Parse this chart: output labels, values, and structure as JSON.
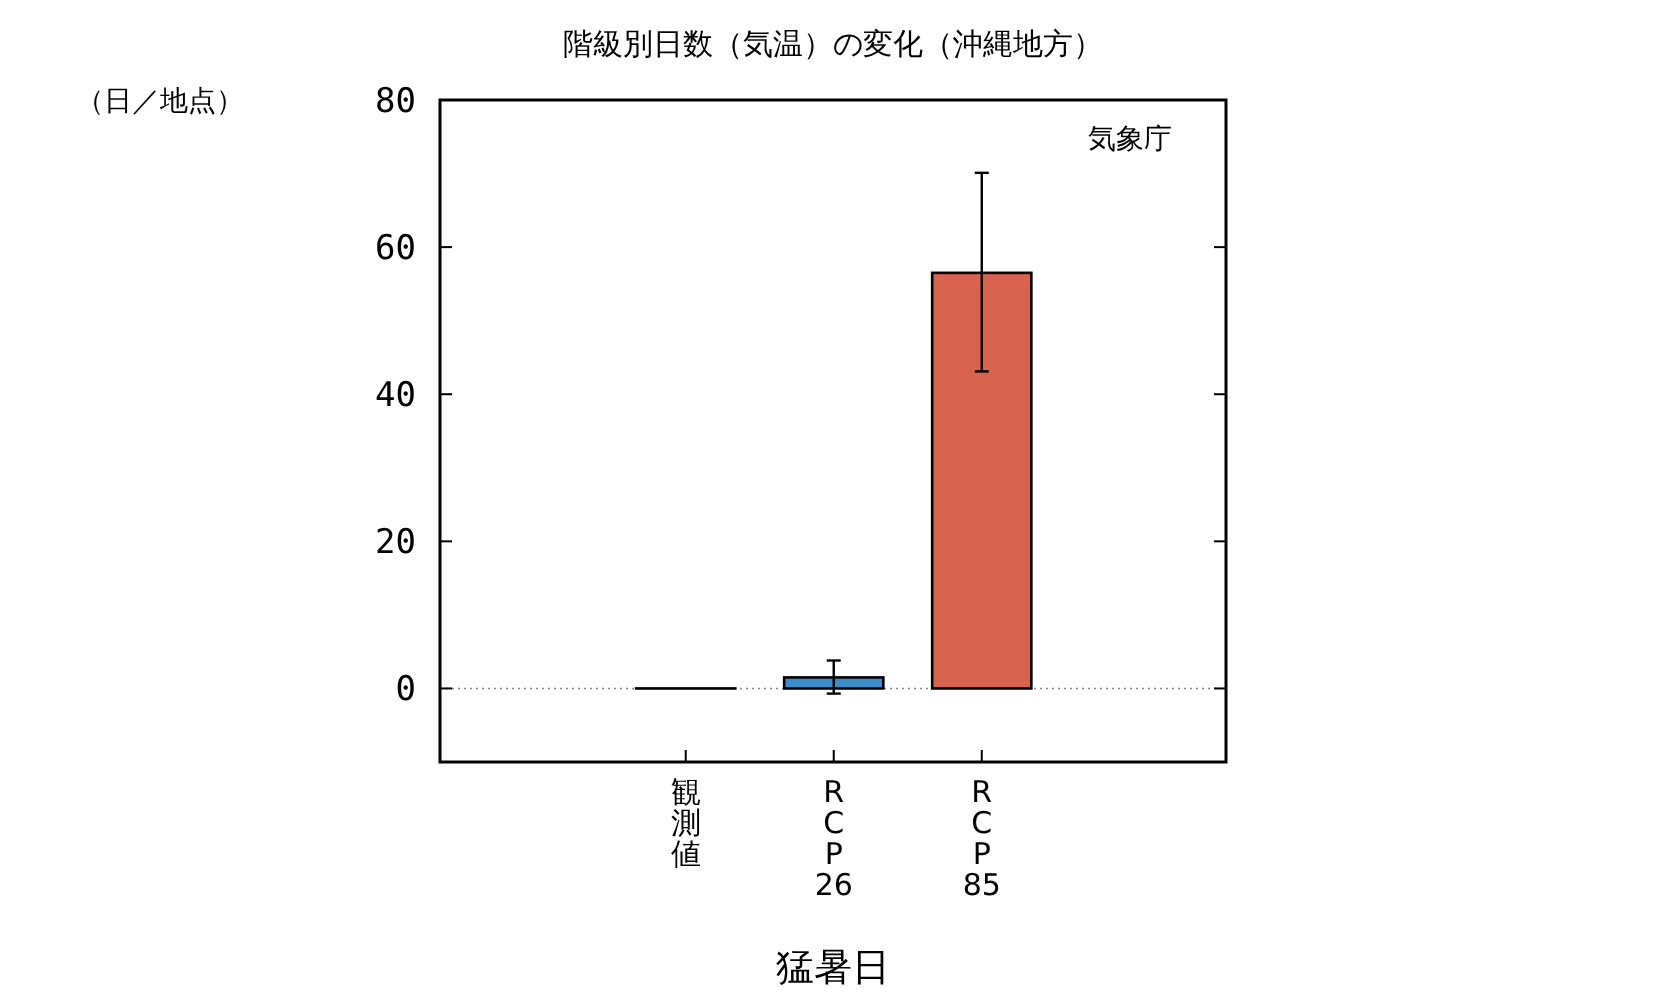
{
  "chart_data": {
    "type": "bar",
    "title": "階級別日数（気温）の変化（沖縄地方）",
    "ylabel": "（日／地点）",
    "xlabel": "猛暑日",
    "categories": [
      "観測値",
      "RCP26",
      "RCP85"
    ],
    "values": [
      0,
      1.5,
      56.5
    ],
    "colors": [
      "#000000",
      "#3b8fc8",
      "#d8634e"
    ],
    "errors": [
      null,
      [
        -0.7,
        3.8
      ],
      [
        43.1,
        70.1
      ]
    ],
    "ylim": [
      -10,
      80
    ],
    "yticks": [
      0,
      20,
      40,
      60,
      80
    ],
    "ref_lines": [
      {
        "axis": "y",
        "value": 0,
        "color": "#888888",
        "line_style": "dotted"
      }
    ],
    "annotations": [
      "気象庁"
    ],
    "grid": false
  }
}
